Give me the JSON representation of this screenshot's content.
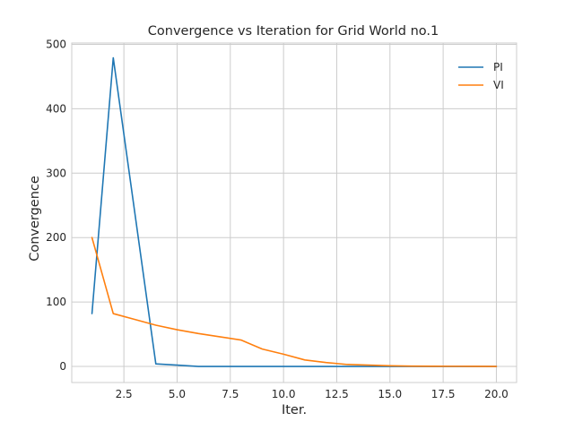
{
  "chart_data": {
    "type": "line",
    "title": "Convergence vs Iteration for Grid World no.1",
    "xlabel": "Iter.",
    "ylabel": "Convergence",
    "xlim": [
      0.05,
      20.95
    ],
    "ylim": [
      -25,
      502
    ],
    "xticks": [
      2.5,
      5.0,
      7.5,
      10.0,
      12.5,
      15.0,
      17.5,
      20.0
    ],
    "xtick_labels": [
      "2.5",
      "5.0",
      "7.5",
      "10.0",
      "12.5",
      "15.0",
      "17.5",
      "20.0"
    ],
    "yticks": [
      0,
      100,
      200,
      300,
      400,
      500
    ],
    "ytick_labels": [
      "0",
      "100",
      "200",
      "300",
      "400",
      "500"
    ],
    "grid": true,
    "legend": "top-right",
    "series": [
      {
        "name": "PI",
        "color": "#1f77b4",
        "x": [
          1,
          2,
          4,
          5,
          6,
          7,
          8,
          9,
          10,
          11,
          12,
          13,
          14,
          15,
          16,
          17,
          18,
          19,
          20
        ],
        "y": [
          82,
          479,
          4,
          2,
          0,
          0,
          0,
          0,
          0,
          0,
          0,
          0,
          0,
          0,
          0,
          0,
          0,
          0,
          0
        ]
      },
      {
        "name": "VI",
        "color": "#ff7f0e",
        "x": [
          1,
          2,
          3,
          4,
          5,
          6,
          7,
          8,
          9,
          10,
          11,
          12,
          13,
          14,
          15,
          16,
          17,
          18,
          19,
          20
        ],
        "y": [
          200,
          82,
          73,
          64,
          57,
          51,
          46,
          41,
          27,
          19,
          10,
          6,
          3,
          2,
          1,
          0.5,
          0.3,
          0.2,
          0.1,
          0
        ]
      }
    ]
  }
}
